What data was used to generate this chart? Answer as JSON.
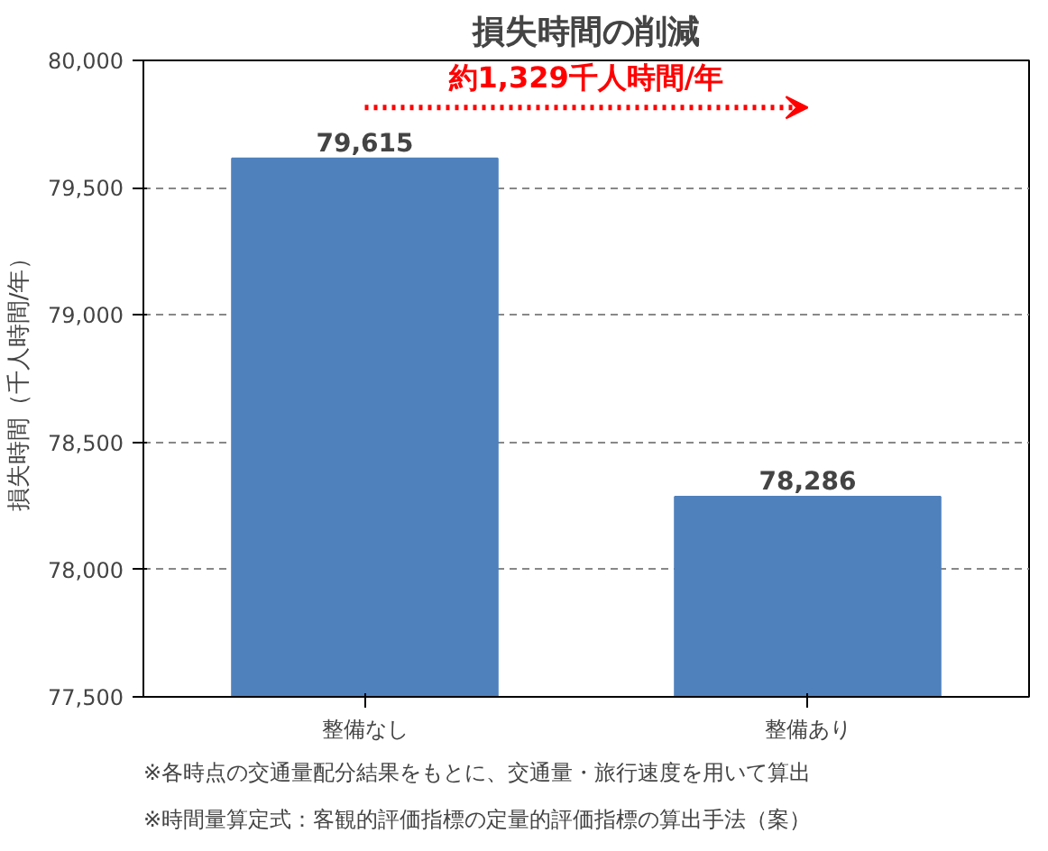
{
  "chart_data": {
    "type": "bar",
    "title": "損失時間の削減",
    "ylabel": "損失時間（千人時間/年）",
    "categories": [
      "整備なし",
      "整備あり"
    ],
    "values": [
      79615,
      78286
    ],
    "color": "#4f81bd",
    "ylim": [
      77500,
      80000
    ],
    "yticks": [
      {
        "value": 77500,
        "label": "77,500"
      },
      {
        "value": 78000,
        "label": "78,000"
      },
      {
        "value": 78500,
        "label": "78,500"
      },
      {
        "value": 79000,
        "label": "79,000"
      },
      {
        "value": 79500,
        "label": "79,500"
      },
      {
        "value": 80000,
        "label": "80,000"
      }
    ],
    "grid": "y",
    "value_labels": [
      "79,615",
      "78,286"
    ],
    "annotations": [
      "約1,329千人時間/年",
      "※各時点の交通量配分結果をもとに、交通量・旅行速度を用いて算出",
      "※時間量算定式：客観的評価指標の定量的評価指標の算出手法（案）"
    ]
  }
}
